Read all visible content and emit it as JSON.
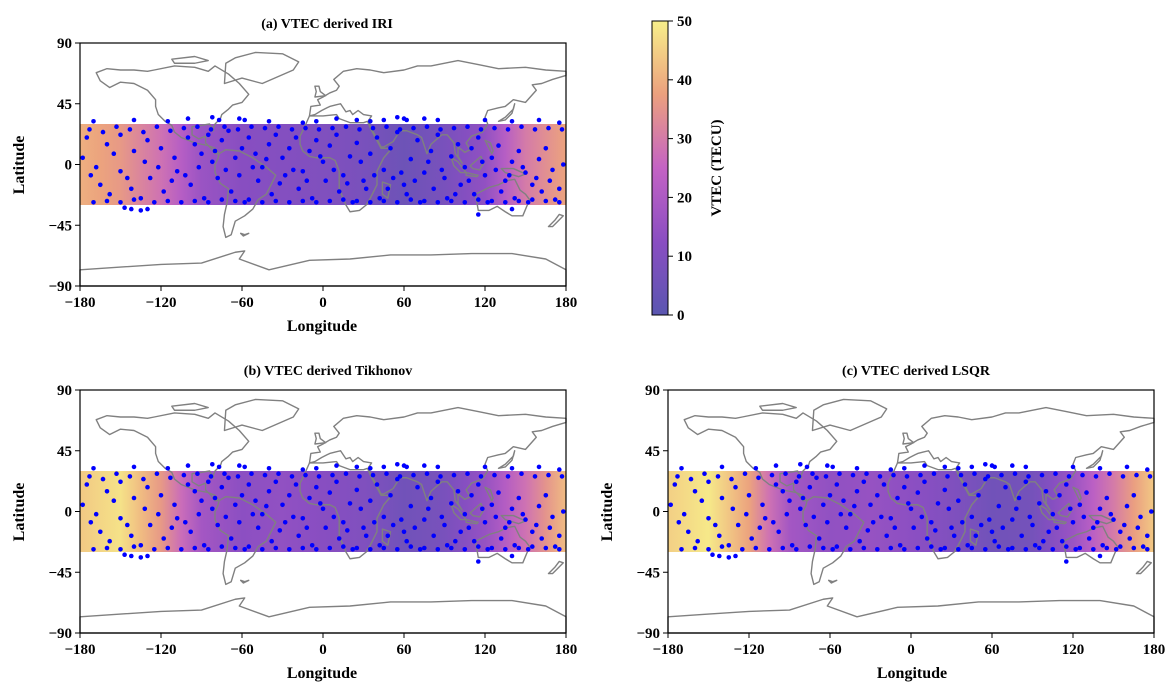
{
  "chart_data": {
    "type": "heatmap",
    "x_label": "Longitude",
    "y_label": "Latitude",
    "xlim": [
      -180,
      180
    ],
    "ylim": [
      -90,
      90
    ],
    "x_ticks": [
      "−180",
      "−120",
      "−60",
      "0",
      "60",
      "120",
      "180"
    ],
    "y_ticks": [
      "90",
      "45",
      "0",
      "−45",
      "−90"
    ],
    "x_tick_values": [
      -180,
      -120,
      -60,
      0,
      60,
      120,
      180
    ],
    "y_tick_values": [
      90,
      45,
      0,
      -45,
      -90
    ],
    "data_band_lat": [
      -30,
      30
    ],
    "colormap": "plasma (alpha 0.6)",
    "marker_color": "#0000ff",
    "coastline_color": "#808080",
    "colorbar": {
      "label": "VTEC (TECU)",
      "ticks": [
        "0",
        "10",
        "20",
        "30",
        "40",
        "50"
      ],
      "tick_values": [
        0,
        10,
        20,
        30,
        40,
        50
      ],
      "range": [
        0,
        50
      ]
    },
    "panels": [
      {
        "title": "(a) VTEC derived IRI",
        "vtec_profile": {
          "lon": [
            -180,
            -150,
            -120,
            -90,
            -60,
            -30,
            0,
            30,
            60,
            90,
            120,
            150,
            180
          ],
          "vtec": [
            40,
            36,
            28,
            16,
            12,
            11,
            10,
            8,
            5,
            8,
            14,
            30,
            38
          ]
        }
      },
      {
        "title": "(b) VTEC derived Tikhonov",
        "vtec_profile": {
          "lon": [
            -180,
            -150,
            -120,
            -90,
            -60,
            -30,
            0,
            30,
            60,
            90,
            120,
            150,
            180
          ],
          "vtec": [
            44,
            48,
            36,
            18,
            13,
            14,
            12,
            10,
            6,
            8,
            15,
            28,
            42
          ]
        }
      },
      {
        "title": "(c) VTEC derived LSQR",
        "vtec_profile": {
          "lon": [
            -180,
            -150,
            -120,
            -90,
            -60,
            -30,
            0,
            30,
            60,
            90,
            120,
            150,
            180
          ],
          "vtec": [
            45,
            49,
            38,
            18,
            14,
            15,
            13,
            10,
            6,
            7,
            16,
            30,
            44
          ]
        }
      }
    ],
    "stations": [
      [
        -170,
        32
      ],
      [
        -140,
        33
      ],
      [
        -115,
        32
      ],
      [
        -100,
        34
      ],
      [
        -82,
        35
      ],
      [
        -77,
        33
      ],
      [
        -62,
        34
      ],
      [
        -58,
        33
      ],
      [
        -40,
        32
      ],
      [
        -15,
        31
      ],
      [
        -5,
        32
      ],
      [
        10,
        34
      ],
      [
        25,
        33
      ],
      [
        35,
        32
      ],
      [
        45,
        33
      ],
      [
        55,
        35
      ],
      [
        60,
        34
      ],
      [
        62,
        33
      ],
      [
        75,
        34
      ],
      [
        85,
        33
      ],
      [
        120,
        33
      ],
      [
        140,
        32
      ],
      [
        160,
        33
      ],
      [
        175,
        31
      ],
      [
        -175,
        20
      ],
      [
        -160,
        15
      ],
      [
        -150,
        22
      ],
      [
        -140,
        10
      ],
      [
        -130,
        18
      ],
      [
        -120,
        12
      ],
      [
        -110,
        5
      ],
      [
        -100,
        20
      ],
      [
        -95,
        15
      ],
      [
        -90,
        8
      ],
      [
        -85,
        22
      ],
      [
        -80,
        10
      ],
      [
        -75,
        18
      ],
      [
        -70,
        25
      ],
      [
        -65,
        5
      ],
      [
        -60,
        12
      ],
      [
        -55,
        20
      ],
      [
        -50,
        8
      ],
      [
        -45,
        -2
      ],
      [
        -40,
        15
      ],
      [
        -35,
        22
      ],
      [
        -30,
        5
      ],
      [
        -25,
        12
      ],
      [
        -20,
        20
      ],
      [
        -15,
        -5
      ],
      [
        -10,
        10
      ],
      [
        -5,
        18
      ],
      [
        0,
        2
      ],
      [
        5,
        14
      ],
      [
        10,
        22
      ],
      [
        15,
        -8
      ],
      [
        20,
        6
      ],
      [
        25,
        16
      ],
      [
        30,
        -12
      ],
      [
        35,
        8
      ],
      [
        40,
        20
      ],
      [
        45,
        -4
      ],
      [
        50,
        12
      ],
      [
        55,
        24
      ],
      [
        60,
        -15
      ],
      [
        65,
        4
      ],
      [
        70,
        18
      ],
      [
        75,
        -6
      ],
      [
        80,
        10
      ],
      [
        85,
        22
      ],
      [
        90,
        -10
      ],
      [
        95,
        6
      ],
      [
        100,
        15
      ],
      [
        105,
        -2
      ],
      [
        110,
        12
      ],
      [
        115,
        20
      ],
      [
        120,
        -8
      ],
      [
        125,
        5
      ],
      [
        130,
        14
      ],
      [
        135,
        -12
      ],
      [
        140,
        2
      ],
      [
        145,
        10
      ],
      [
        150,
        -6
      ],
      [
        155,
        -15
      ],
      [
        160,
        4
      ],
      [
        165,
        12
      ],
      [
        170,
        -4
      ],
      [
        175,
        -18
      ],
      [
        -172,
        -8
      ],
      [
        -165,
        -15
      ],
      [
        -158,
        -22
      ],
      [
        -150,
        -5
      ],
      [
        -142,
        -18
      ],
      [
        -135,
        -25
      ],
      [
        -128,
        -10
      ],
      [
        -118,
        -20
      ],
      [
        -108,
        -5
      ],
      [
        -98,
        -15
      ],
      [
        -88,
        -25
      ],
      [
        -78,
        -10
      ],
      [
        -68,
        -20
      ],
      [
        -58,
        -28
      ],
      [
        -48,
        -12
      ],
      [
        -38,
        -22
      ],
      [
        -28,
        -8
      ],
      [
        -18,
        -18
      ],
      [
        -8,
        -25
      ],
      [
        2,
        -12
      ],
      [
        12,
        -20
      ],
      [
        22,
        -28
      ],
      [
        32,
        -18
      ],
      [
        42,
        -25
      ],
      [
        52,
        -10
      ],
      [
        62,
        -22
      ],
      [
        72,
        -28
      ],
      [
        82,
        -18
      ],
      [
        92,
        -25
      ],
      [
        102,
        -15
      ],
      [
        112,
        -22
      ],
      [
        122,
        -28
      ],
      [
        132,
        -20
      ],
      [
        142,
        -25
      ],
      [
        152,
        -28
      ],
      [
        162,
        -20
      ],
      [
        172,
        -26
      ],
      [
        -178,
        5
      ],
      [
        -168,
        -2
      ],
      [
        -155,
        8
      ],
      [
        -145,
        -10
      ],
      [
        -132,
        2
      ],
      [
        -122,
        -2
      ],
      [
        -112,
        -12
      ],
      [
        -102,
        -8
      ],
      [
        -92,
        -2
      ],
      [
        -82,
        2
      ],
      [
        -72,
        -4
      ],
      [
        -62,
        -8
      ],
      [
        -52,
        -2
      ],
      [
        -42,
        4
      ],
      [
        -32,
        -14
      ],
      [
        -22,
        -4
      ],
      [
        -12,
        -12
      ],
      [
        -2,
        6
      ],
      [
        8,
        -4
      ],
      [
        18,
        -14
      ],
      [
        28,
        2
      ],
      [
        38,
        -8
      ],
      [
        48,
        -18
      ],
      [
        58,
        -6
      ],
      [
        68,
        -12
      ],
      [
        78,
        2
      ],
      [
        88,
        -4
      ],
      [
        98,
        -22
      ],
      [
        108,
        -12
      ],
      [
        118,
        2
      ],
      [
        128,
        -4
      ],
      [
        138,
        -8
      ],
      [
        148,
        -2
      ],
      [
        158,
        -10
      ],
      [
        168,
        -12
      ],
      [
        178,
        0
      ],
      [
        -173,
        26
      ],
      [
        -163,
        24
      ],
      [
        -153,
        28
      ],
      [
        -143,
        26
      ],
      [
        -133,
        24
      ],
      [
        -123,
        28
      ],
      [
        -113,
        25
      ],
      [
        -103,
        27
      ],
      [
        -93,
        28
      ],
      [
        -83,
        26
      ],
      [
        -73,
        28
      ],
      [
        -63,
        26
      ],
      [
        -53,
        28
      ],
      [
        -43,
        27
      ],
      [
        -33,
        28
      ],
      [
        -23,
        26
      ],
      [
        -13,
        27
      ],
      [
        -3,
        26
      ],
      [
        7,
        27
      ],
      [
        17,
        28
      ],
      [
        27,
        26
      ],
      [
        37,
        27
      ],
      [
        47,
        28
      ],
      [
        57,
        26
      ],
      [
        67,
        27
      ],
      [
        77,
        28
      ],
      [
        87,
        26
      ],
      [
        97,
        27
      ],
      [
        107,
        28
      ],
      [
        117,
        26
      ],
      [
        127,
        27
      ],
      [
        137,
        26
      ],
      [
        147,
        28
      ],
      [
        157,
        26
      ],
      [
        167,
        27
      ],
      [
        177,
        26
      ],
      [
        -147,
        -32
      ],
      [
        -142,
        -33
      ],
      [
        -135,
        -34
      ],
      [
        -130,
        -33
      ],
      [
        115,
        -37
      ],
      [
        140,
        -33
      ],
      [
        -170,
        -28
      ],
      [
        -160,
        -27
      ],
      [
        -150,
        -28
      ],
      [
        -140,
        -26
      ],
      [
        -125,
        -28
      ],
      [
        -115,
        -27
      ],
      [
        -105,
        -28
      ],
      [
        -95,
        -27
      ],
      [
        -85,
        -28
      ],
      [
        -75,
        -26
      ],
      [
        -65,
        -27
      ],
      [
        -55,
        -26
      ],
      [
        -45,
        -28
      ],
      [
        -35,
        -27
      ],
      [
        -25,
        -28
      ],
      [
        -15,
        -27
      ],
      [
        -5,
        -28
      ],
      [
        5,
        -27
      ],
      [
        15,
        -26
      ],
      [
        25,
        -27
      ],
      [
        35,
        -28
      ],
      [
        45,
        -27
      ],
      [
        55,
        -28
      ],
      [
        65,
        -26
      ],
      [
        75,
        -27
      ],
      [
        85,
        -28
      ],
      [
        95,
        -27
      ],
      [
        105,
        -28
      ],
      [
        115,
        -26
      ],
      [
        125,
        -27
      ],
      [
        135,
        -28
      ],
      [
        145,
        -27
      ],
      [
        155,
        -26
      ],
      [
        165,
        -27
      ],
      [
        175,
        -28
      ]
    ]
  }
}
